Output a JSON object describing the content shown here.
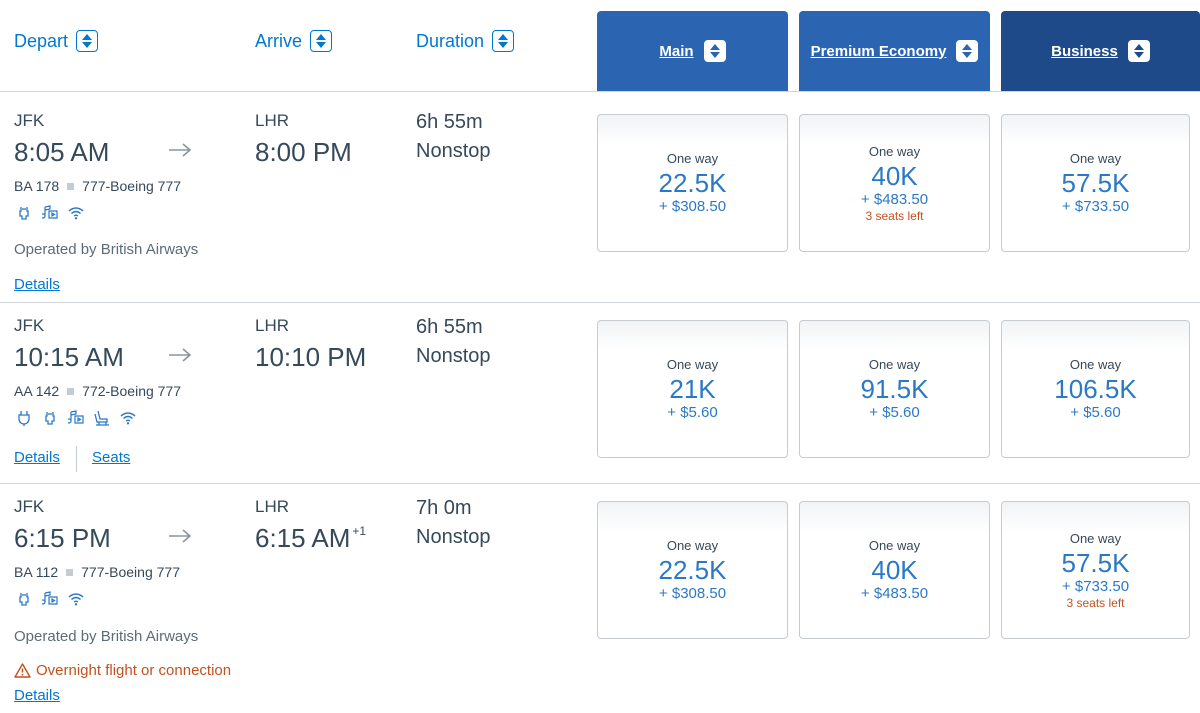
{
  "headers": {
    "depart": "Depart",
    "arrive": "Arrive",
    "duration": "Duration",
    "cabins": {
      "main": "Main",
      "premium": "Premium Economy",
      "business": "Business"
    }
  },
  "flights": [
    {
      "origin": "JFK",
      "depart_time": "8:05 AM",
      "destination": "LHR",
      "arrive_time": "8:00 PM",
      "arrive_day_offset": "",
      "duration": "6h 55m",
      "stops": "Nonstop",
      "flight_number": "BA 178",
      "aircraft": "777-Boeing 777",
      "amenities": [
        "usb-power-icon",
        "entertainment-icon",
        "wifi-icon"
      ],
      "operated_by": "Operated by British Airways",
      "warning": "",
      "details_link": "Details",
      "seats_link": "",
      "fares": {
        "main": {
          "label": "One way",
          "miles": "22.5K",
          "cash": "+ $308.50",
          "seats_left": ""
        },
        "premium": {
          "label": "One way",
          "miles": "40K",
          "cash": "+ $483.50",
          "seats_left": "3 seats left"
        },
        "business": {
          "label": "One way",
          "miles": "57.5K",
          "cash": "+ $733.50",
          "seats_left": ""
        }
      }
    },
    {
      "origin": "JFK",
      "depart_time": "10:15 AM",
      "destination": "LHR",
      "arrive_time": "10:10 PM",
      "arrive_day_offset": "",
      "duration": "6h 55m",
      "stops": "Nonstop",
      "flight_number": "AA 142",
      "aircraft": "772-Boeing 777",
      "amenities": [
        "power-outlet-icon",
        "usb-power-icon",
        "entertainment-icon",
        "lie-flat-seat-icon",
        "wifi-icon"
      ],
      "operated_by": "",
      "warning": "",
      "details_link": "Details",
      "seats_link": "Seats",
      "fares": {
        "main": {
          "label": "One way",
          "miles": "21K",
          "cash": "+ $5.60",
          "seats_left": ""
        },
        "premium": {
          "label": "One way",
          "miles": "91.5K",
          "cash": "+ $5.60",
          "seats_left": ""
        },
        "business": {
          "label": "One way",
          "miles": "106.5K",
          "cash": "+ $5.60",
          "seats_left": ""
        }
      }
    },
    {
      "origin": "JFK",
      "depart_time": "6:15 PM",
      "destination": "LHR",
      "arrive_time": "6:15 AM",
      "arrive_day_offset": "+1",
      "duration": "7h 0m",
      "stops": "Nonstop",
      "flight_number": "BA 112",
      "aircraft": "777-Boeing 777",
      "amenities": [
        "usb-power-icon",
        "entertainment-icon",
        "wifi-icon"
      ],
      "operated_by": "Operated by British Airways",
      "warning": "Overnight flight or connection",
      "details_link": "Details",
      "seats_link": "",
      "fares": {
        "main": {
          "label": "One way",
          "miles": "22.5K",
          "cash": "+ $308.50",
          "seats_left": ""
        },
        "premium": {
          "label": "One way",
          "miles": "40K",
          "cash": "+ $483.50",
          "seats_left": ""
        },
        "business": {
          "label": "One way",
          "miles": "57.5K",
          "cash": "+ $733.50",
          "seats_left": "3 seats left"
        }
      }
    }
  ],
  "colors": {
    "link": "#0078d2",
    "tab": "#2b65b2",
    "tab_selected": "#1e4a8a",
    "price": "#2b79c6",
    "warning": "#c3511f",
    "text": "#36495a"
  }
}
